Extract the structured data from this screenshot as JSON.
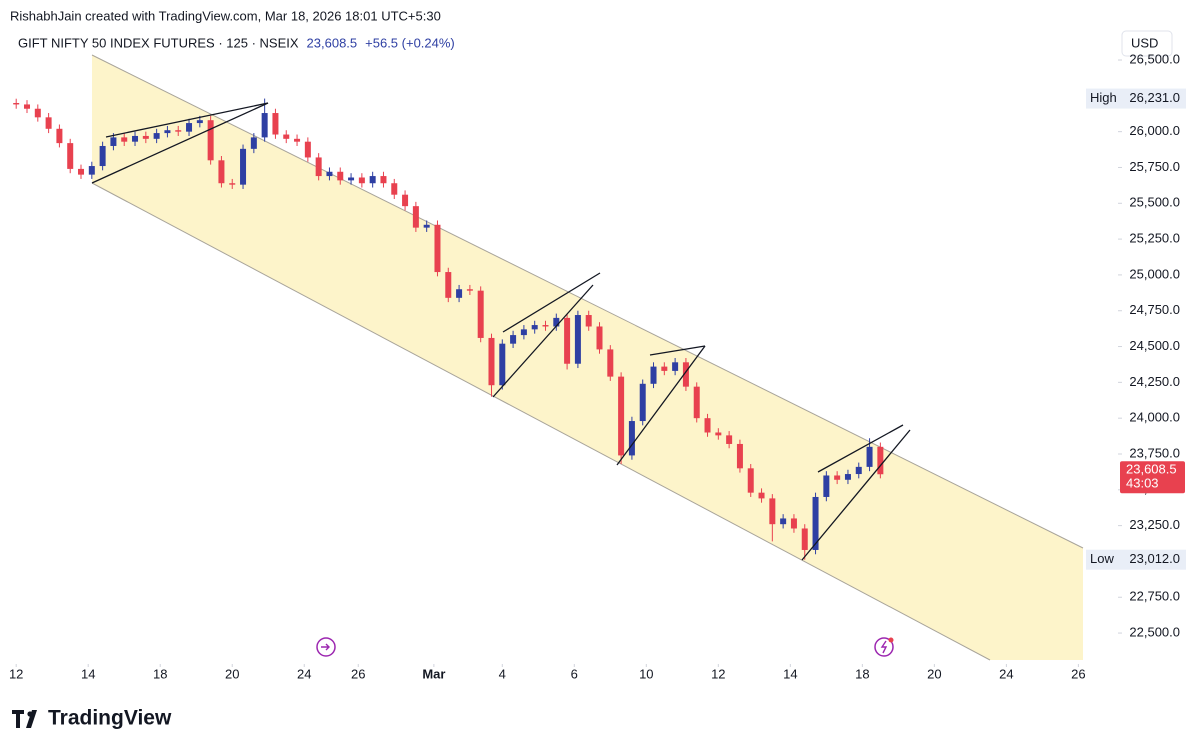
{
  "chart_data": {
    "type": "candlestick",
    "credit": "RishabhJain created with TradingView.com, Mar 18, 2026 18:01 UTC+5:30",
    "title": "GIFT NIFTY 50 INDEX FUTURES · 125 · NSEIX",
    "change": "+56.5 (+0.24%)",
    "currency": "USD",
    "brand": "TradingView",
    "up_color": "#2e3fa3",
    "down_color": "#e8414f",
    "last_price": {
      "value": 23608.5,
      "label": "23,608.5"
    },
    "countdown": "43:03",
    "high_marker": {
      "text": "High",
      "value": 26231,
      "label": "26,231.0"
    },
    "low_marker": {
      "text": "Low",
      "value": 23012,
      "label": "23,012.0"
    },
    "xlim": [
      -0.2,
      30.6
    ],
    "ylim": [
      22298,
      26570
    ],
    "xticks": [
      {
        "value": 0,
        "label": "12"
      },
      {
        "value": 2,
        "label": "14"
      },
      {
        "value": 4,
        "label": "18"
      },
      {
        "value": 6,
        "label": "20"
      },
      {
        "value": 8,
        "label": "24"
      },
      {
        "value": 9.5,
        "label": "26"
      },
      {
        "value": 11.6,
        "label": "Mar"
      },
      {
        "value": 13.5,
        "label": "4"
      },
      {
        "value": 15.5,
        "label": "6"
      },
      {
        "value": 17.5,
        "label": "10"
      },
      {
        "value": 19.5,
        "label": "12"
      },
      {
        "value": 21.5,
        "label": "14"
      },
      {
        "value": 23.5,
        "label": "18"
      },
      {
        "value": 25.5,
        "label": "20"
      },
      {
        "value": 27.5,
        "label": "24"
      },
      {
        "value": 29.5,
        "label": "26"
      }
    ],
    "yticks": [
      {
        "value": 22500,
        "label": "22,500.0"
      },
      {
        "value": 22750,
        "label": "22,750.0"
      },
      {
        "value": 23000,
        "label": "23,000.0"
      },
      {
        "value": 23250,
        "label": "23,250.0"
      },
      {
        "value": 23500,
        "label": "23,500.0"
      },
      {
        "value": 23750,
        "label": "23,750.0"
      },
      {
        "value": 24000,
        "label": "24,000.0"
      },
      {
        "value": 24250,
        "label": "24,250.0"
      },
      {
        "value": 24500,
        "label": "24,500.0"
      },
      {
        "value": 24750,
        "label": "24,750.0"
      },
      {
        "value": 25000,
        "label": "25,000.0"
      },
      {
        "value": 25250,
        "label": "25,250.0"
      },
      {
        "value": 25500,
        "label": "25,500.0"
      },
      {
        "value": 25750,
        "label": "25,750.0"
      },
      {
        "value": 26000,
        "label": "26,000.0"
      },
      {
        "value": 26250,
        "label": "26,250.0"
      },
      {
        "value": 26500,
        "label": "26,500.0"
      }
    ],
    "x": [
      0,
      0.3,
      0.6,
      0.9,
      1.2,
      1.5,
      1.8,
      2.1,
      2.4,
      2.7,
      3.0,
      3.3,
      3.6,
      3.9,
      4.2,
      4.5,
      4.8,
      5.1,
      5.4,
      5.7,
      6.0,
      6.3,
      6.6,
      6.9,
      7.2,
      7.5,
      7.8,
      8.1,
      8.4,
      8.7,
      9.0,
      9.3,
      9.6,
      9.9,
      10.2,
      10.5,
      10.8,
      11.1,
      11.4,
      11.7,
      12.0,
      12.3,
      12.6,
      12.9,
      13.2,
      13.5,
      13.8,
      14.1,
      14.4,
      14.7,
      15.0,
      15.3,
      15.6,
      15.9,
      16.2,
      16.5,
      16.8,
      17.1,
      17.4,
      17.7,
      18.0,
      18.3,
      18.6,
      18.9,
      19.2,
      19.5,
      19.8,
      20.1,
      20.4,
      20.7,
      21.0,
      21.3,
      21.6,
      21.9,
      22.2,
      22.5,
      22.8,
      23.1,
      23.4,
      23.7,
      24.0
    ],
    "open": [
      26200,
      26190,
      26160,
      26100,
      26020,
      25920,
      25740,
      25700,
      25760,
      25900,
      25960,
      25930,
      25970,
      25950,
      25990,
      26010,
      26000,
      26060,
      26080,
      25800,
      25640,
      25630,
      25880,
      25960,
      26130,
      25980,
      25950,
      25930,
      25820,
      25690,
      25720,
      25660,
      25680,
      25640,
      25690,
      25640,
      25560,
      25480,
      25330,
      25350,
      25020,
      24840,
      24900,
      24890,
      24560,
      24230,
      24520,
      24580,
      24620,
      24650,
      24640,
      24700,
      24380,
      24720,
      24640,
      24480,
      24290,
      23740,
      23980,
      24240,
      24360,
      24330,
      24390,
      24220,
      24000,
      23900,
      23880,
      23820,
      23650,
      23480,
      23440,
      23260,
      23300,
      23230,
      23080,
      23450,
      23600,
      23570,
      23610,
      23660,
      23800
    ],
    "high": [
      26230,
      26220,
      26190,
      26130,
      26050,
      25950,
      25770,
      25790,
      25930,
      25990,
      25990,
      26000,
      26000,
      26020,
      26040,
      26040,
      26090,
      26110,
      26110,
      25830,
      25670,
      25910,
      25990,
      26231,
      26160,
      26010,
      25980,
      25960,
      25850,
      25750,
      25750,
      25710,
      25710,
      25720,
      25720,
      25670,
      25590,
      25510,
      25380,
      25380,
      25050,
      24930,
      24930,
      24920,
      24590,
      24550,
      24610,
      24650,
      24680,
      24680,
      24730,
      24730,
      24750,
      24750,
      24670,
      24510,
      24320,
      24010,
      24270,
      24390,
      24390,
      24420,
      24420,
      24250,
      24030,
      23930,
      23910,
      23850,
      23680,
      23510,
      23470,
      23330,
      23330,
      23260,
      23480,
      23630,
      23630,
      23640,
      23690,
      23860,
      23830
    ],
    "low": [
      26160,
      26130,
      26070,
      25990,
      25890,
      25710,
      25670,
      25670,
      25730,
      25870,
      25900,
      25900,
      25920,
      25920,
      25960,
      25970,
      25970,
      26030,
      25770,
      25610,
      25600,
      25600,
      25850,
      25930,
      25950,
      25920,
      25900,
      25790,
      25660,
      25660,
      25630,
      25630,
      25610,
      25610,
      25610,
      25530,
      25450,
      25300,
      25300,
      24990,
      24810,
      24810,
      24860,
      24530,
      24150,
      24200,
      24490,
      24550,
      24590,
      24610,
      24610,
      24340,
      24350,
      24610,
      24450,
      24260,
      23680,
      23710,
      23950,
      24210,
      24300,
      24300,
      24190,
      23970,
      23870,
      23850,
      23790,
      23620,
      23450,
      23410,
      23140,
      23230,
      23200,
      23012,
      23050,
      23420,
      23540,
      23540,
      23580,
      23630,
      23580
    ],
    "close": [
      26190,
      26160,
      26100,
      26020,
      25920,
      25740,
      25700,
      25760,
      25900,
      25960,
      25930,
      25970,
      25950,
      25990,
      26010,
      26000,
      26060,
      26080,
      25800,
      25640,
      25630,
      25880,
      25960,
      26130,
      25980,
      25950,
      25930,
      25820,
      25690,
      25720,
      25660,
      25680,
      25640,
      25690,
      25640,
      25560,
      25480,
      25330,
      25350,
      25020,
      24840,
      24900,
      24890,
      24560,
      24230,
      24520,
      24580,
      24620,
      24650,
      24640,
      24700,
      24380,
      24720,
      24640,
      24480,
      24290,
      23740,
      23980,
      24240,
      24360,
      24330,
      24390,
      24220,
      24000,
      23900,
      23880,
      23820,
      23650,
      23480,
      23440,
      23260,
      23300,
      23230,
      23080,
      23450,
      23600,
      23570,
      23610,
      23660,
      23800,
      23608.5
    ]
  }
}
